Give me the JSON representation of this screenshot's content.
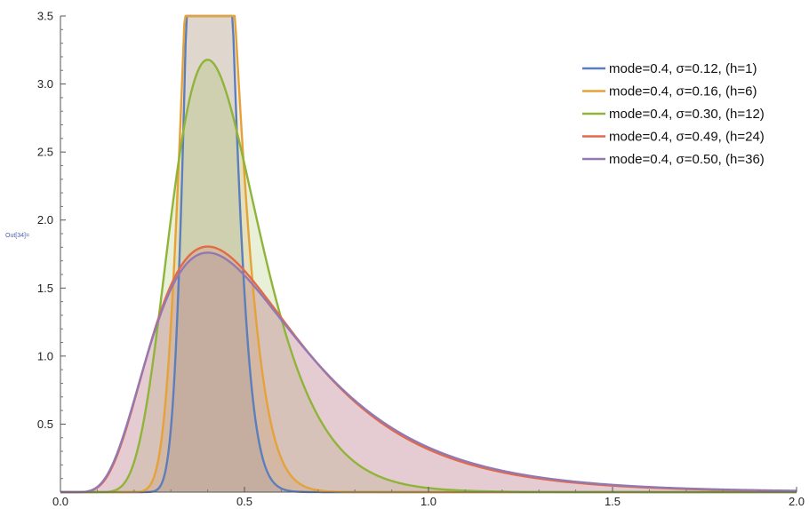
{
  "cell_label": "Out[34]=",
  "chart_data": {
    "type": "area",
    "title": "",
    "xlabel": "",
    "ylabel": "",
    "xlim": [
      0,
      2
    ],
    "ylim": [
      0,
      3.5
    ],
    "x_ticks": [
      0.0,
      0.5,
      1.0,
      1.5,
      2.0
    ],
    "x_tick_labels": [
      "0.0",
      "0.5",
      "1.0",
      "1.5",
      "2.0"
    ],
    "y_ticks": [
      0.5,
      1.0,
      1.5,
      2.0,
      2.5,
      3.0,
      3.5
    ],
    "y_tick_labels": [
      "0.5",
      "1.0",
      "1.5",
      "2.0",
      "2.5",
      "3.0",
      "3.5"
    ],
    "grid": false,
    "legend_position": "top-right",
    "series": [
      {
        "name": "mode=0.4, σ=0.12, (h=1)",
        "mode": 0.4,
        "sigma": 0.12,
        "color": "#5b7fbd"
      },
      {
        "name": "mode=0.4, σ=0.16, (h=6)",
        "mode": 0.4,
        "sigma": 0.16,
        "color": "#e5a23a"
      },
      {
        "name": "mode=0.4, σ=0.30, (h=12)",
        "mode": 0.4,
        "sigma": 0.3,
        "color": "#8fb43a"
      },
      {
        "name": "mode=0.4, σ=0.49, (h=24)",
        "mode": 0.4,
        "sigma": 0.49,
        "color": "#e4694a"
      },
      {
        "name": "mode=0.4, σ=0.50, (h=36)",
        "mode": 0.4,
        "sigma": 0.5,
        "color": "#9279b0"
      }
    ]
  }
}
